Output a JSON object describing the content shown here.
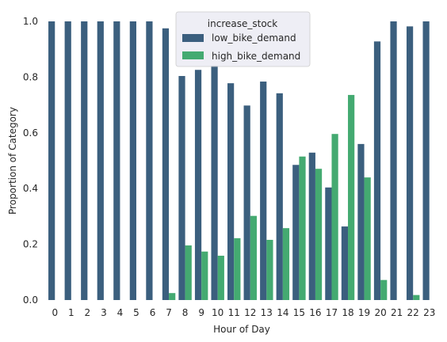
{
  "chart_data": {
    "type": "bar",
    "xlabel": "Hour of Day",
    "ylabel": "Proportion of Category",
    "ylim": [
      0,
      1.0
    ],
    "yticks": [
      "0.0",
      "0.2",
      "0.4",
      "0.6",
      "0.8",
      "1.0"
    ],
    "categories": [
      "0",
      "1",
      "2",
      "3",
      "4",
      "5",
      "6",
      "7",
      "8",
      "9",
      "10",
      "11",
      "12",
      "13",
      "14",
      "15",
      "16",
      "17",
      "18",
      "19",
      "20",
      "21",
      "22",
      "23"
    ],
    "legend": {
      "title": "increase_stock",
      "placement": "top-center"
    },
    "grid": false,
    "series": [
      {
        "name": "low_bike_demand",
        "color": "#3b5f7e",
        "values": [
          1.0,
          1.0,
          1.0,
          1.0,
          1.0,
          1.0,
          1.0,
          0.975,
          0.804,
          0.826,
          0.841,
          0.778,
          0.698,
          0.784,
          0.742,
          0.485,
          0.529,
          0.404,
          0.264,
          0.56,
          0.928,
          1.0,
          0.982,
          1.0
        ]
      },
      {
        "name": "high_bike_demand",
        "color": "#44aa71",
        "values": [
          0.0,
          0.0,
          0.0,
          0.0,
          0.0,
          0.0,
          0.0,
          0.025,
          0.196,
          0.174,
          0.159,
          0.222,
          0.302,
          0.216,
          0.258,
          0.515,
          0.471,
          0.596,
          0.736,
          0.44,
          0.072,
          0.0,
          0.018,
          0.0
        ]
      }
    ]
  }
}
